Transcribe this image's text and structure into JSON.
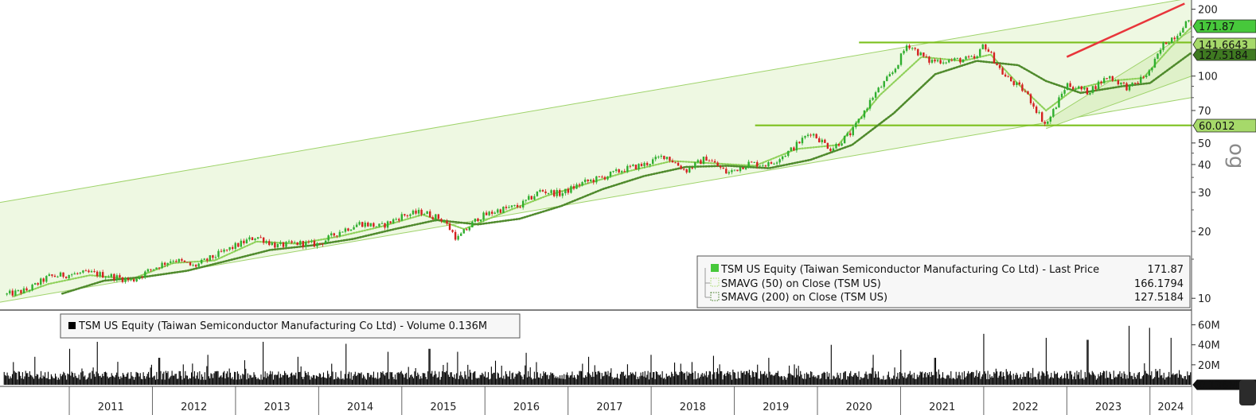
{
  "chart_data": {
    "type": "line",
    "price_panel": {
      "y_scale": "log",
      "ylim": [
        9,
        220
      ],
      "y_ticks": [
        10,
        20,
        30,
        40,
        50,
        70,
        100,
        200
      ],
      "y_tick_labels": [
        "10",
        "20",
        "30",
        "40",
        "50",
        "70",
        "100",
        "200"
      ],
      "xlim": [
        "2010-03",
        "2024-07"
      ],
      "series": [
        {
          "name": "TSM US Equity (Taiwan Semiconductor Manufacturing Co Ltd) - Last Price",
          "color": "#d42020",
          "points": [
            [
              "2010-04",
              10.4
            ],
            [
              "2010-07",
              10.9
            ],
            [
              "2010-10",
              12.5
            ],
            [
              "2011-01",
              12.8
            ],
            [
              "2011-04",
              13.0
            ],
            [
              "2011-07",
              12.6
            ],
            [
              "2011-10",
              12.0
            ],
            [
              "2012-01",
              13.6
            ],
            [
              "2012-04",
              15.0
            ],
            [
              "2012-07",
              13.9
            ],
            [
              "2012-10",
              15.5
            ],
            [
              "2013-01",
              17.2
            ],
            [
              "2013-04",
              19.0
            ],
            [
              "2013-07",
              17.2
            ],
            [
              "2013-10",
              17.7
            ],
            [
              "2014-01",
              17.5
            ],
            [
              "2014-04",
              20.0
            ],
            [
              "2014-07",
              21.8
            ],
            [
              "2014-10",
              21.0
            ],
            [
              "2015-01",
              23.5
            ],
            [
              "2015-04",
              24.5
            ],
            [
              "2015-07",
              22.5
            ],
            [
              "2015-09",
              18.5
            ],
            [
              "2015-12",
              23.0
            ],
            [
              "2016-03",
              25.0
            ],
            [
              "2016-06",
              26.0
            ],
            [
              "2016-09",
              30.5
            ],
            [
              "2016-12",
              29.5
            ],
            [
              "2017-03",
              33.0
            ],
            [
              "2017-06",
              35.0
            ],
            [
              "2017-09",
              38.0
            ],
            [
              "2017-12",
              40.0
            ],
            [
              "2018-03",
              44.0
            ],
            [
              "2018-06",
              37.5
            ],
            [
              "2018-09",
              43.0
            ],
            [
              "2018-12",
              36.5
            ],
            [
              "2019-03",
              40.5
            ],
            [
              "2019-06",
              40.0
            ],
            [
              "2019-09",
              46.0
            ],
            [
              "2019-12",
              56.0
            ],
            [
              "2020-03",
              47.0
            ],
            [
              "2020-06",
              56.0
            ],
            [
              "2020-09",
              81.0
            ],
            [
              "2020-12",
              105.0
            ],
            [
              "2021-02",
              140.0
            ],
            [
              "2021-05",
              117.0
            ],
            [
              "2021-09",
              118.0
            ],
            [
              "2021-12",
              120.0
            ],
            [
              "2022-01",
              140.0
            ],
            [
              "2022-04",
              100.0
            ],
            [
              "2022-07",
              85.0
            ],
            [
              "2022-10",
              60.0
            ],
            [
              "2023-01",
              92.0
            ],
            [
              "2023-04",
              85.0
            ],
            [
              "2023-07",
              100.0
            ],
            [
              "2023-10",
              88.0
            ],
            [
              "2024-01",
              105.0
            ],
            [
              "2024-03",
              140.0
            ],
            [
              "2024-05",
              155.0
            ],
            [
              "2024-06",
              175.0
            ],
            [
              "2024-07",
              171.87
            ]
          ]
        },
        {
          "name": "SMAVG (50) on Close (TSM US)",
          "color": "#8fd15a",
          "points": [
            [
              "2010-05",
              10.2
            ],
            [
              "2010-10",
              11.6
            ],
            [
              "2011-04",
              12.7
            ],
            [
              "2011-10",
              12.2
            ],
            [
              "2012-04",
              14.4
            ],
            [
              "2012-10",
              14.8
            ],
            [
              "2013-04",
              18.0
            ],
            [
              "2013-10",
              17.6
            ],
            [
              "2014-04",
              19.0
            ],
            [
              "2014-10",
              21.0
            ],
            [
              "2015-04",
              23.8
            ],
            [
              "2015-10",
              20.5
            ],
            [
              "2016-04",
              24.5
            ],
            [
              "2016-10",
              29.0
            ],
            [
              "2017-04",
              33.0
            ],
            [
              "2017-10",
              37.5
            ],
            [
              "2018-04",
              41.5
            ],
            [
              "2018-10",
              40.5
            ],
            [
              "2019-04",
              39.5
            ],
            [
              "2019-10",
              47.0
            ],
            [
              "2020-04",
              49.0
            ],
            [
              "2020-10",
              82.0
            ],
            [
              "2021-04",
              122.0
            ],
            [
              "2021-10",
              117.0
            ],
            [
              "2022-02",
              125.0
            ],
            [
              "2022-06",
              92.0
            ],
            [
              "2022-10",
              70.0
            ],
            [
              "2023-02",
              87.0
            ],
            [
              "2023-07",
              95.0
            ],
            [
              "2023-12",
              98.0
            ],
            [
              "2024-04",
              135.0
            ],
            [
              "2024-07",
              166.1794
            ]
          ]
        },
        {
          "name": "SMAVG (200) on Close (TSM US)",
          "color": "#4f8a2c",
          "points": [
            [
              "2010-12",
              10.5
            ],
            [
              "2011-06",
              12.0
            ],
            [
              "2011-12",
              12.5
            ],
            [
              "2012-06",
              13.3
            ],
            [
              "2012-12",
              14.8
            ],
            [
              "2013-06",
              16.5
            ],
            [
              "2013-12",
              17.3
            ],
            [
              "2014-06",
              18.5
            ],
            [
              "2014-12",
              20.5
            ],
            [
              "2015-06",
              22.5
            ],
            [
              "2015-12",
              21.5
            ],
            [
              "2016-06",
              22.8
            ],
            [
              "2016-12",
              26.0
            ],
            [
              "2017-06",
              31.0
            ],
            [
              "2017-12",
              35.5
            ],
            [
              "2018-06",
              39.0
            ],
            [
              "2018-12",
              39.5
            ],
            [
              "2019-06",
              38.5
            ],
            [
              "2019-12",
              42.0
            ],
            [
              "2020-06",
              49.0
            ],
            [
              "2020-12",
              68.0
            ],
            [
              "2021-06",
              102.0
            ],
            [
              "2021-12",
              117.0
            ],
            [
              "2022-06",
              112.0
            ],
            [
              "2022-10",
              95.0
            ],
            [
              "2023-03",
              84.0
            ],
            [
              "2023-09",
              90.0
            ],
            [
              "2024-01",
              93.0
            ],
            [
              "2024-07",
              127.5184
            ]
          ]
        }
      ],
      "channel": {
        "upper": [
          [
            "2010-03",
            27.0
          ],
          [
            "2024-07",
            225.0
          ]
        ],
        "lower": [
          [
            "2010-03",
            9.6
          ],
          [
            "2024-07",
            80.0
          ]
        ]
      },
      "inner_channel": {
        "upper": [
          [
            "2022-10",
            63.0
          ],
          [
            "2024-07",
            160.0
          ]
        ],
        "lower": [
          [
            "2022-10",
            58.0
          ],
          [
            "2024-07",
            100.0
          ]
        ]
      },
      "horizontal_lines": [
        {
          "value": 141.6643,
          "from": "2020-07",
          "color": "#7cc01e"
        },
        {
          "value": 60.012,
          "from": "2019-04",
          "color": "#7cc01e"
        }
      ],
      "trend_line": {
        "from": [
          "2023-01",
          122.0
        ],
        "to": [
          "2024-06",
          212.0
        ],
        "color": "#e8353b"
      },
      "value_badges": [
        {
          "label": "171.87",
          "value": 171.87,
          "fill": "#47c83b"
        },
        {
          "label": "141.6643",
          "value": 141.6643,
          "fill": "#a6d96a"
        },
        {
          "label": "127.5184",
          "value": 127.5184,
          "fill": "#3f7a21"
        },
        {
          "label": "60.012",
          "value": 60.012,
          "fill": "#a6d96a"
        }
      ],
      "legend": [
        {
          "label": "TSM US Equity (Taiwan Semiconductor Manufacturing Co Ltd) - Last Price",
          "value": "171.87"
        },
        {
          "label": "SMAVG (50)  on Close (TSM US)",
          "value": "166.1794"
        },
        {
          "label": "SMAVG (200)  on Close (TSM US)",
          "value": "127.5184"
        }
      ],
      "right_axis_title_fragment": "og"
    },
    "volume_panel": {
      "ylim": [
        0,
        70
      ],
      "y_ticks": [
        20,
        40,
        60
      ],
      "y_tick_labels": [
        "20M",
        "40M",
        "60M"
      ],
      "unit": "M",
      "legend": "TSM US Equity (Taiwan Semiconductor Manufacturing Co Ltd) - Volume 0.136M",
      "last_value_label": "0.136M",
      "spikes": [
        [
          "2010-08",
          28
        ],
        [
          "2011-01",
          36
        ],
        [
          "2011-05",
          43
        ],
        [
          "2012-02",
          27
        ],
        [
          "2012-09",
          30
        ],
        [
          "2013-05",
          43
        ],
        [
          "2013-10",
          28
        ],
        [
          "2014-05",
          41
        ],
        [
          "2014-11",
          33
        ],
        [
          "2015-05",
          36
        ],
        [
          "2015-09",
          33
        ],
        [
          "2016-07",
          32
        ],
        [
          "2017-04",
          28
        ],
        [
          "2018-01",
          30
        ],
        [
          "2018-10",
          29
        ],
        [
          "2019-06",
          27
        ],
        [
          "2020-03",
          40
        ],
        [
          "2020-09",
          30
        ],
        [
          "2021-01",
          35
        ],
        [
          "2021-06",
          27
        ],
        [
          "2022-01",
          51
        ],
        [
          "2022-10",
          47
        ],
        [
          "2023-04",
          45
        ],
        [
          "2023-10",
          59
        ],
        [
          "2024-01",
          57
        ],
        [
          "2024-04",
          47
        ],
        [
          "2024-07",
          52
        ]
      ]
    },
    "x_axis": {
      "labels": [
        "2011",
        "2012",
        "2013",
        "2014",
        "2015",
        "2016",
        "2017",
        "2018",
        "2019",
        "2020",
        "2021",
        "2022",
        "2023",
        "2024"
      ]
    }
  }
}
